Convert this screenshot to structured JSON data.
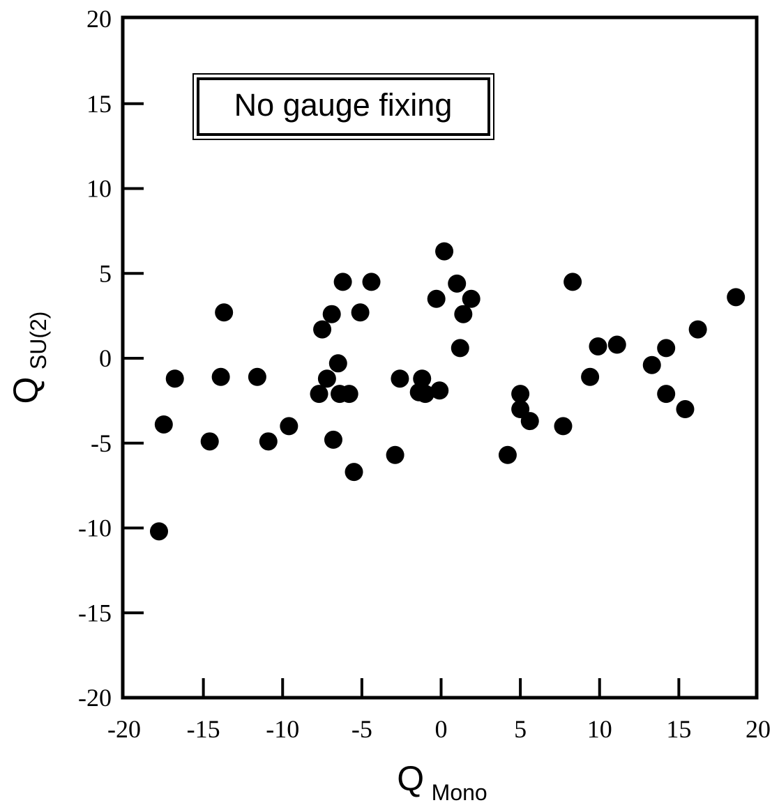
{
  "chart_data": {
    "type": "scatter",
    "title": "",
    "annotation": "No gauge fixing",
    "xlabel": {
      "main": "Q",
      "sub": "Mono"
    },
    "ylabel": {
      "main": "Q",
      "sub": "SU(2)"
    },
    "xlim": [
      -20,
      20
    ],
    "ylim": [
      -20,
      20
    ],
    "xticks": [
      -20,
      -15,
      -10,
      -5,
      0,
      5,
      10,
      15,
      20
    ],
    "yticks": [
      -20,
      -15,
      -10,
      -5,
      0,
      5,
      10,
      15,
      20
    ],
    "xtick_labels": [
      "-20",
      "-15",
      "-10",
      "-5",
      "0",
      "5",
      "10",
      "15",
      "20"
    ],
    "ytick_labels": [
      "-20",
      "-15",
      "-10",
      "-5",
      "0",
      "5",
      "10",
      "15",
      "20"
    ],
    "grid": false,
    "marker_color": "#000000",
    "points": [
      {
        "x": -17.8,
        "y": -10.2
      },
      {
        "x": -17.5,
        "y": -3.9
      },
      {
        "x": -16.8,
        "y": -1.2
      },
      {
        "x": -14.6,
        "y": -4.9
      },
      {
        "x": -13.9,
        "y": -1.1
      },
      {
        "x": -13.7,
        "y": 2.7
      },
      {
        "x": -11.6,
        "y": -1.1
      },
      {
        "x": -10.9,
        "y": -4.9
      },
      {
        "x": -9.6,
        "y": -4.0
      },
      {
        "x": -7.7,
        "y": -2.1
      },
      {
        "x": -7.5,
        "y": 1.7
      },
      {
        "x": -7.2,
        "y": -1.2
      },
      {
        "x": -6.9,
        "y": 2.6
      },
      {
        "x": -6.8,
        "y": -4.8
      },
      {
        "x": -6.5,
        "y": -0.3
      },
      {
        "x": -6.4,
        "y": -2.1
      },
      {
        "x": -6.2,
        "y": 4.5
      },
      {
        "x": -5.8,
        "y": -2.1
      },
      {
        "x": -5.5,
        "y": -6.7
      },
      {
        "x": -5.1,
        "y": 2.7
      },
      {
        "x": -4.4,
        "y": 4.5
      },
      {
        "x": -2.9,
        "y": -5.7
      },
      {
        "x": -2.6,
        "y": -1.2
      },
      {
        "x": -1.4,
        "y": -2.0
      },
      {
        "x": -1.2,
        "y": -1.2
      },
      {
        "x": -1.0,
        "y": -2.1
      },
      {
        "x": -0.3,
        "y": 3.5
      },
      {
        "x": -0.1,
        "y": -1.9
      },
      {
        "x": 0.2,
        "y": 6.3
      },
      {
        "x": 1.0,
        "y": 4.4
      },
      {
        "x": 1.2,
        "y": 0.6
      },
      {
        "x": 1.4,
        "y": 2.6
      },
      {
        "x": 1.9,
        "y": 3.5
      },
      {
        "x": 4.2,
        "y": -5.7
      },
      {
        "x": 5.0,
        "y": -2.1
      },
      {
        "x": 5.0,
        "y": -3.0
      },
      {
        "x": 5.6,
        "y": -3.7
      },
      {
        "x": 7.7,
        "y": -4.0
      },
      {
        "x": 8.3,
        "y": 4.5
      },
      {
        "x": 9.4,
        "y": -1.1
      },
      {
        "x": 9.9,
        "y": 0.7
      },
      {
        "x": 11.1,
        "y": 0.8
      },
      {
        "x": 13.3,
        "y": -0.4
      },
      {
        "x": 14.2,
        "y": 0.6
      },
      {
        "x": 14.2,
        "y": -2.1
      },
      {
        "x": 15.4,
        "y": -3.0
      },
      {
        "x": 16.2,
        "y": 1.7
      },
      {
        "x": 18.6,
        "y": 3.6
      }
    ]
  }
}
